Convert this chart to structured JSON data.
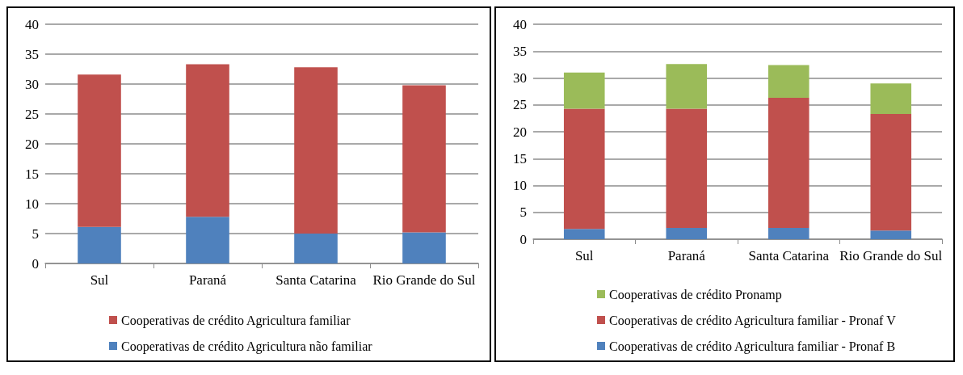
{
  "chart_data": [
    {
      "type": "bar",
      "stacked": true,
      "categories": [
        "Sul",
        "Paraná",
        "Santa Catarina",
        "Rio Grande do Sul"
      ],
      "ylim": [
        0,
        40
      ],
      "yticks": [
        0,
        5,
        10,
        15,
        20,
        25,
        30,
        35,
        40
      ],
      "grid": "y",
      "legend": "bottom",
      "series": [
        {
          "name": "Cooperativas de crédito Agricultura não familiar",
          "color": "#4f81bd",
          "values": [
            6.1,
            7.8,
            5.0,
            5.2
          ]
        },
        {
          "name": "Cooperativas de crédito Agricultura familiar",
          "color": "#c0504d",
          "values": [
            25.5,
            25.5,
            27.8,
            24.6
          ]
        }
      ]
    },
    {
      "type": "bar",
      "stacked": true,
      "categories": [
        "Sul",
        "Paraná",
        "Santa Catarina",
        "Rio Grande do Sul"
      ],
      "ylim": [
        0,
        40
      ],
      "yticks": [
        0,
        5,
        10,
        15,
        20,
        25,
        30,
        35,
        40
      ],
      "grid": "y",
      "legend": "bottom",
      "series": [
        {
          "name": "Cooperativas de crédito Agricultura familiar - Pronaf B",
          "color": "#4f81bd",
          "values": [
            1.9,
            2.1,
            2.1,
            1.6
          ]
        },
        {
          "name": "Cooperativas de crédito Agricultura familiar - Pronaf V",
          "color": "#c0504d",
          "values": [
            22.4,
            22.2,
            24.2,
            21.7
          ]
        },
        {
          "name": "Cooperativas de crédito Pronamp",
          "color": "#9bbb59",
          "values": [
            6.7,
            8.3,
            6.1,
            5.7
          ]
        }
      ]
    }
  ]
}
